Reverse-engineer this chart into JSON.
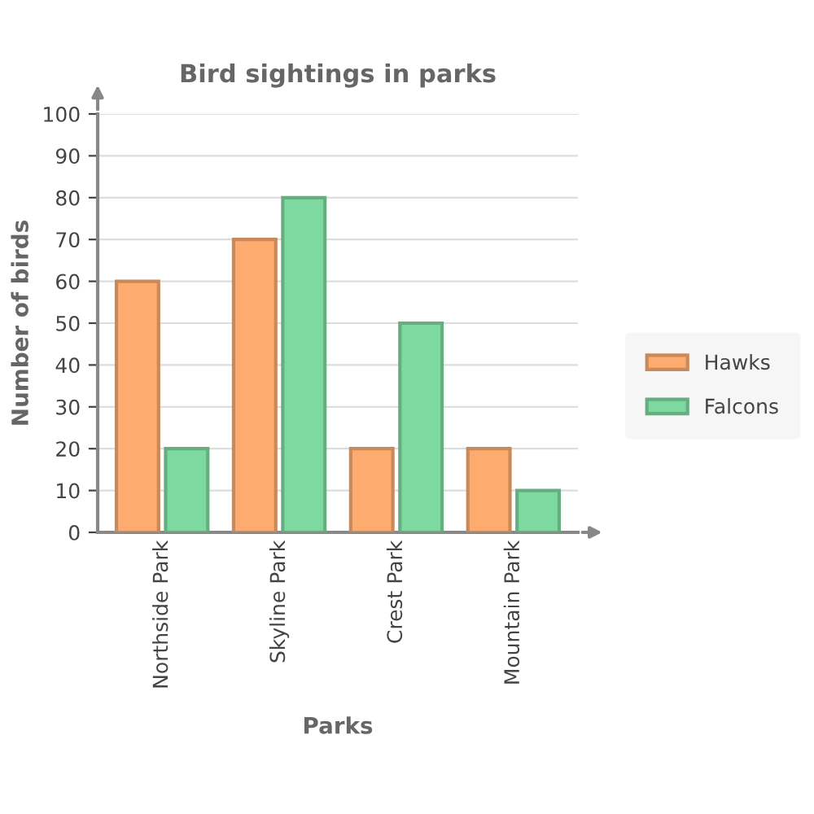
{
  "chart_data": {
    "type": "bar",
    "title": "Bird sightings in parks",
    "xlabel": "Parks",
    "ylabel": "Number of birds",
    "categories": [
      "Northside Park",
      "Skyline Park",
      "Crest Park",
      "Mountain Park"
    ],
    "series": [
      {
        "name": "Hawks",
        "color": "#fdab6f",
        "values": [
          60,
          70,
          20,
          20
        ]
      },
      {
        "name": "Falcons",
        "color": "#7ed9a0",
        "values": [
          20,
          80,
          50,
          10
        ]
      }
    ],
    "ylim": [
      0,
      100
    ],
    "yticks": [
      0,
      10,
      20,
      30,
      40,
      50,
      60,
      70,
      80,
      90,
      100
    ],
    "grid": "y",
    "legend": "right"
  }
}
